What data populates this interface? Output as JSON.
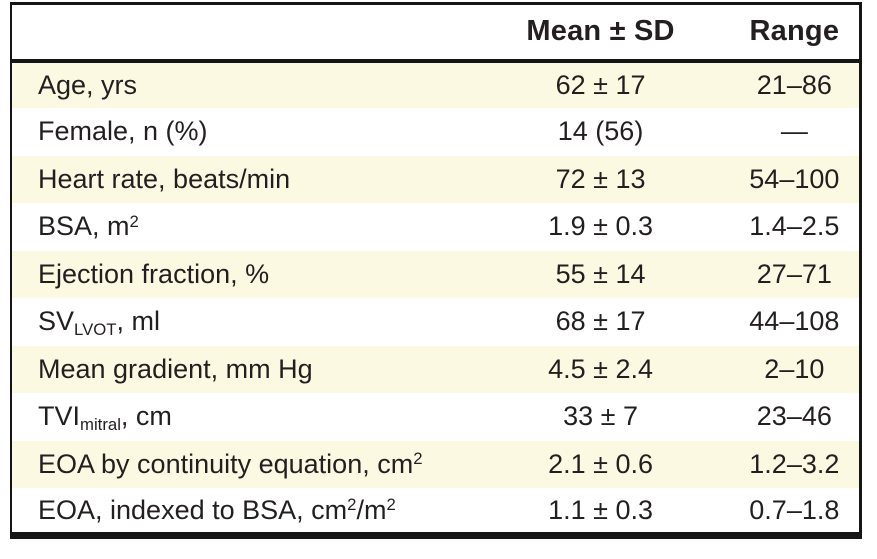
{
  "colors": {
    "row_stripe": "#FCF9E3",
    "border": "#151515",
    "text": "#231F20",
    "background": "#FFFFFF"
  },
  "table": {
    "columns": [
      {
        "label": ""
      },
      {
        "label": "Mean ± SD"
      },
      {
        "label": "Range"
      }
    ],
    "rows": [
      {
        "label": [
          {
            "t": "Age, yrs"
          }
        ],
        "mean_sd": "62 ± 17",
        "range": "21–86"
      },
      {
        "label": [
          {
            "t": "Female, n (%)"
          }
        ],
        "mean_sd": "14 (56)",
        "range": "—"
      },
      {
        "label": [
          {
            "t": "Heart rate, beats/min"
          }
        ],
        "mean_sd": "72 ± 13",
        "range": "54–100"
      },
      {
        "label": [
          {
            "t": "BSA, m"
          },
          {
            "sup": "2"
          }
        ],
        "mean_sd": "1.9 ± 0.3",
        "range": "1.4–2.5"
      },
      {
        "label": [
          {
            "t": "Ejection fraction, %"
          }
        ],
        "mean_sd": "55 ± 14",
        "range": "27–71"
      },
      {
        "label": [
          {
            "t": "SV"
          },
          {
            "sub": "LVOT"
          },
          {
            "t": ", ml"
          }
        ],
        "mean_sd": "68 ± 17",
        "range": "44–108"
      },
      {
        "label": [
          {
            "t": "Mean gradient, mm Hg"
          }
        ],
        "mean_sd": "4.5 ± 2.4",
        "range": "2–10"
      },
      {
        "label": [
          {
            "t": "TVI"
          },
          {
            "sub": "mitral"
          },
          {
            "t": ", cm"
          }
        ],
        "mean_sd": "33 ± 7",
        "range": "23–46"
      },
      {
        "label": [
          {
            "t": "EOA by continuity equation, cm"
          },
          {
            "sup": "2"
          }
        ],
        "mean_sd": "2.1 ± 0.6",
        "range": "1.2–3.2"
      },
      {
        "label": [
          {
            "t": "EOA, indexed to BSA, cm"
          },
          {
            "sup": "2"
          },
          {
            "t": "/m"
          },
          {
            "sup": "2"
          }
        ],
        "mean_sd": "1.1 ± 0.3",
        "range": "0.7–1.8"
      }
    ]
  }
}
